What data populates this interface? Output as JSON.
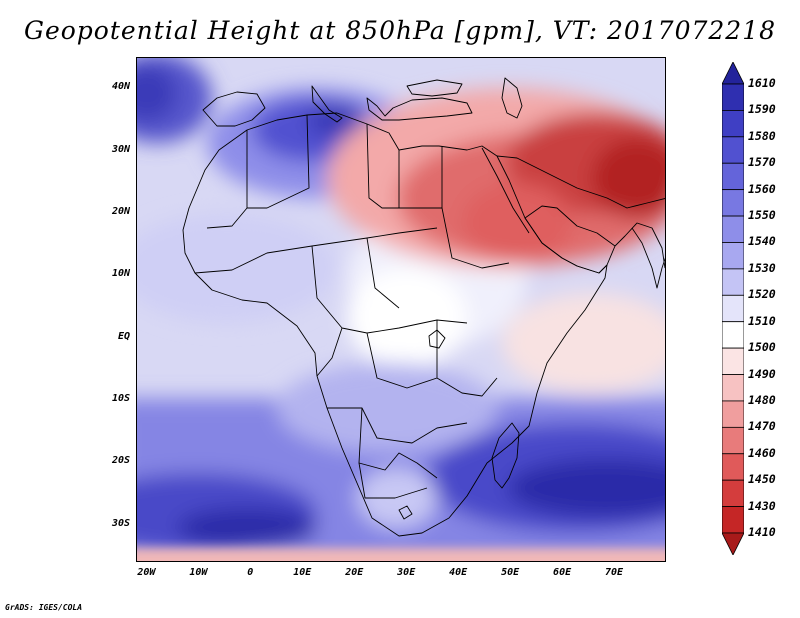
{
  "title": "Geopotential Height at 850hPa [gpm], VT: 2017072218",
  "map": {
    "variable": "Geopotential Height at 850hPa",
    "units": "gpm",
    "valid_time": "2017072218",
    "lon_range": [
      -22,
      80
    ],
    "lat_range": [
      -36,
      45
    ],
    "lat_ticks": [
      {
        "value": 40,
        "label": "40N"
      },
      {
        "value": 30,
        "label": "30N"
      },
      {
        "value": 20,
        "label": "20N"
      },
      {
        "value": 10,
        "label": "10N"
      },
      {
        "value": 0,
        "label": "EQ"
      },
      {
        "value": -10,
        "label": "10S"
      },
      {
        "value": -20,
        "label": "20S"
      },
      {
        "value": -30,
        "label": "30S"
      }
    ],
    "lon_ticks": [
      {
        "value": -20,
        "label": "20W"
      },
      {
        "value": -10,
        "label": "10W"
      },
      {
        "value": 0,
        "label": "0"
      },
      {
        "value": 10,
        "label": "10E"
      },
      {
        "value": 20,
        "label": "20E"
      },
      {
        "value": 30,
        "label": "30E"
      },
      {
        "value": 40,
        "label": "40E"
      },
      {
        "value": 50,
        "label": "50E"
      },
      {
        "value": 60,
        "label": "60E"
      },
      {
        "value": 70,
        "label": "70E"
      }
    ]
  },
  "colorbar": {
    "labels": [
      "1610",
      "1590",
      "1580",
      "1570",
      "1560",
      "1550",
      "1540",
      "1530",
      "1520",
      "1510",
      "1500",
      "1490",
      "1480",
      "1470",
      "1460",
      "1450",
      "1430",
      "1410"
    ],
    "colors": [
      "#23239b",
      "#2f2fb0",
      "#3f3fc4",
      "#5151d0",
      "#6464da",
      "#7878e2",
      "#8e8ee9",
      "#a8a8f0",
      "#c4c4f5",
      "#e4e4fa",
      "#ffffff",
      "#fbe4e4",
      "#f7c2c2",
      "#f09e9e",
      "#e87b7b",
      "#e05a5a",
      "#d43d3d",
      "#c52626",
      "#a81a1a"
    ]
  },
  "footer": "GrADS: IGES/COLA"
}
